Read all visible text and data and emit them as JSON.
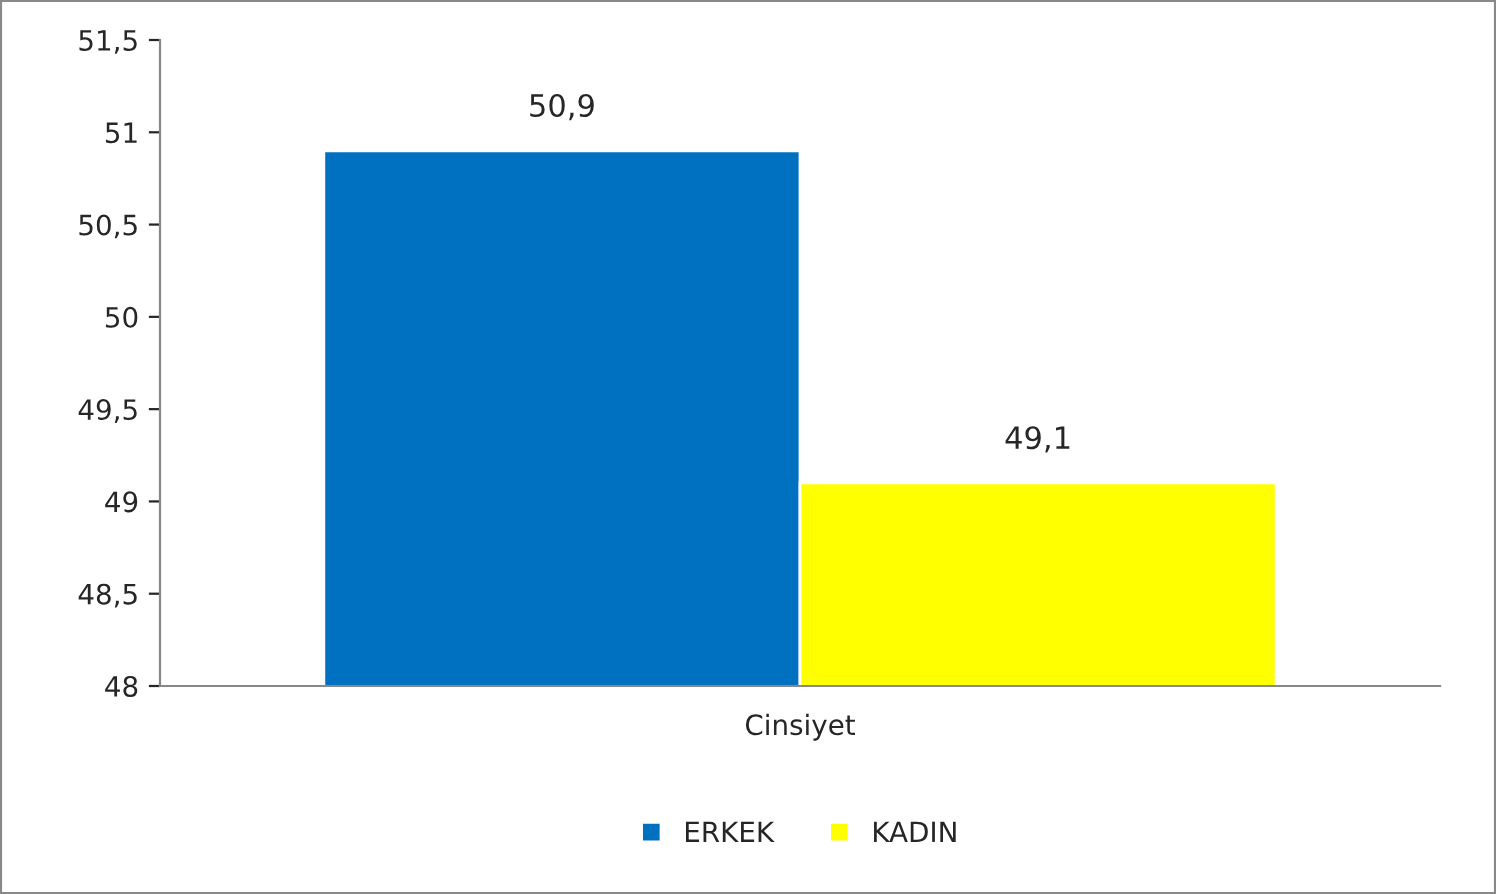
{
  "chart_data": {
    "type": "bar",
    "categories": [
      "Cinsiyet"
    ],
    "series": [
      {
        "name": "ERKEK",
        "color": "#0070c0",
        "values": [
          50.9
        ],
        "value_labels": [
          "50,9"
        ]
      },
      {
        "name": "KADIN",
        "color": "#ffff00",
        "values": [
          49.1
        ],
        "value_labels": [
          "49,1"
        ]
      }
    ],
    "ylim": [
      48,
      51.5
    ],
    "yticks": [
      48,
      {
        "value": 48.5,
        "label": "48,5"
      },
      49,
      {
        "value": 49.5,
        "label": "49,5"
      },
      50,
      {
        "value": 50.5,
        "label": "50,5"
      },
      51,
      {
        "value": 51.5,
        "label": "51,5"
      }
    ],
    "grid": false,
    "legend": "bottom"
  }
}
